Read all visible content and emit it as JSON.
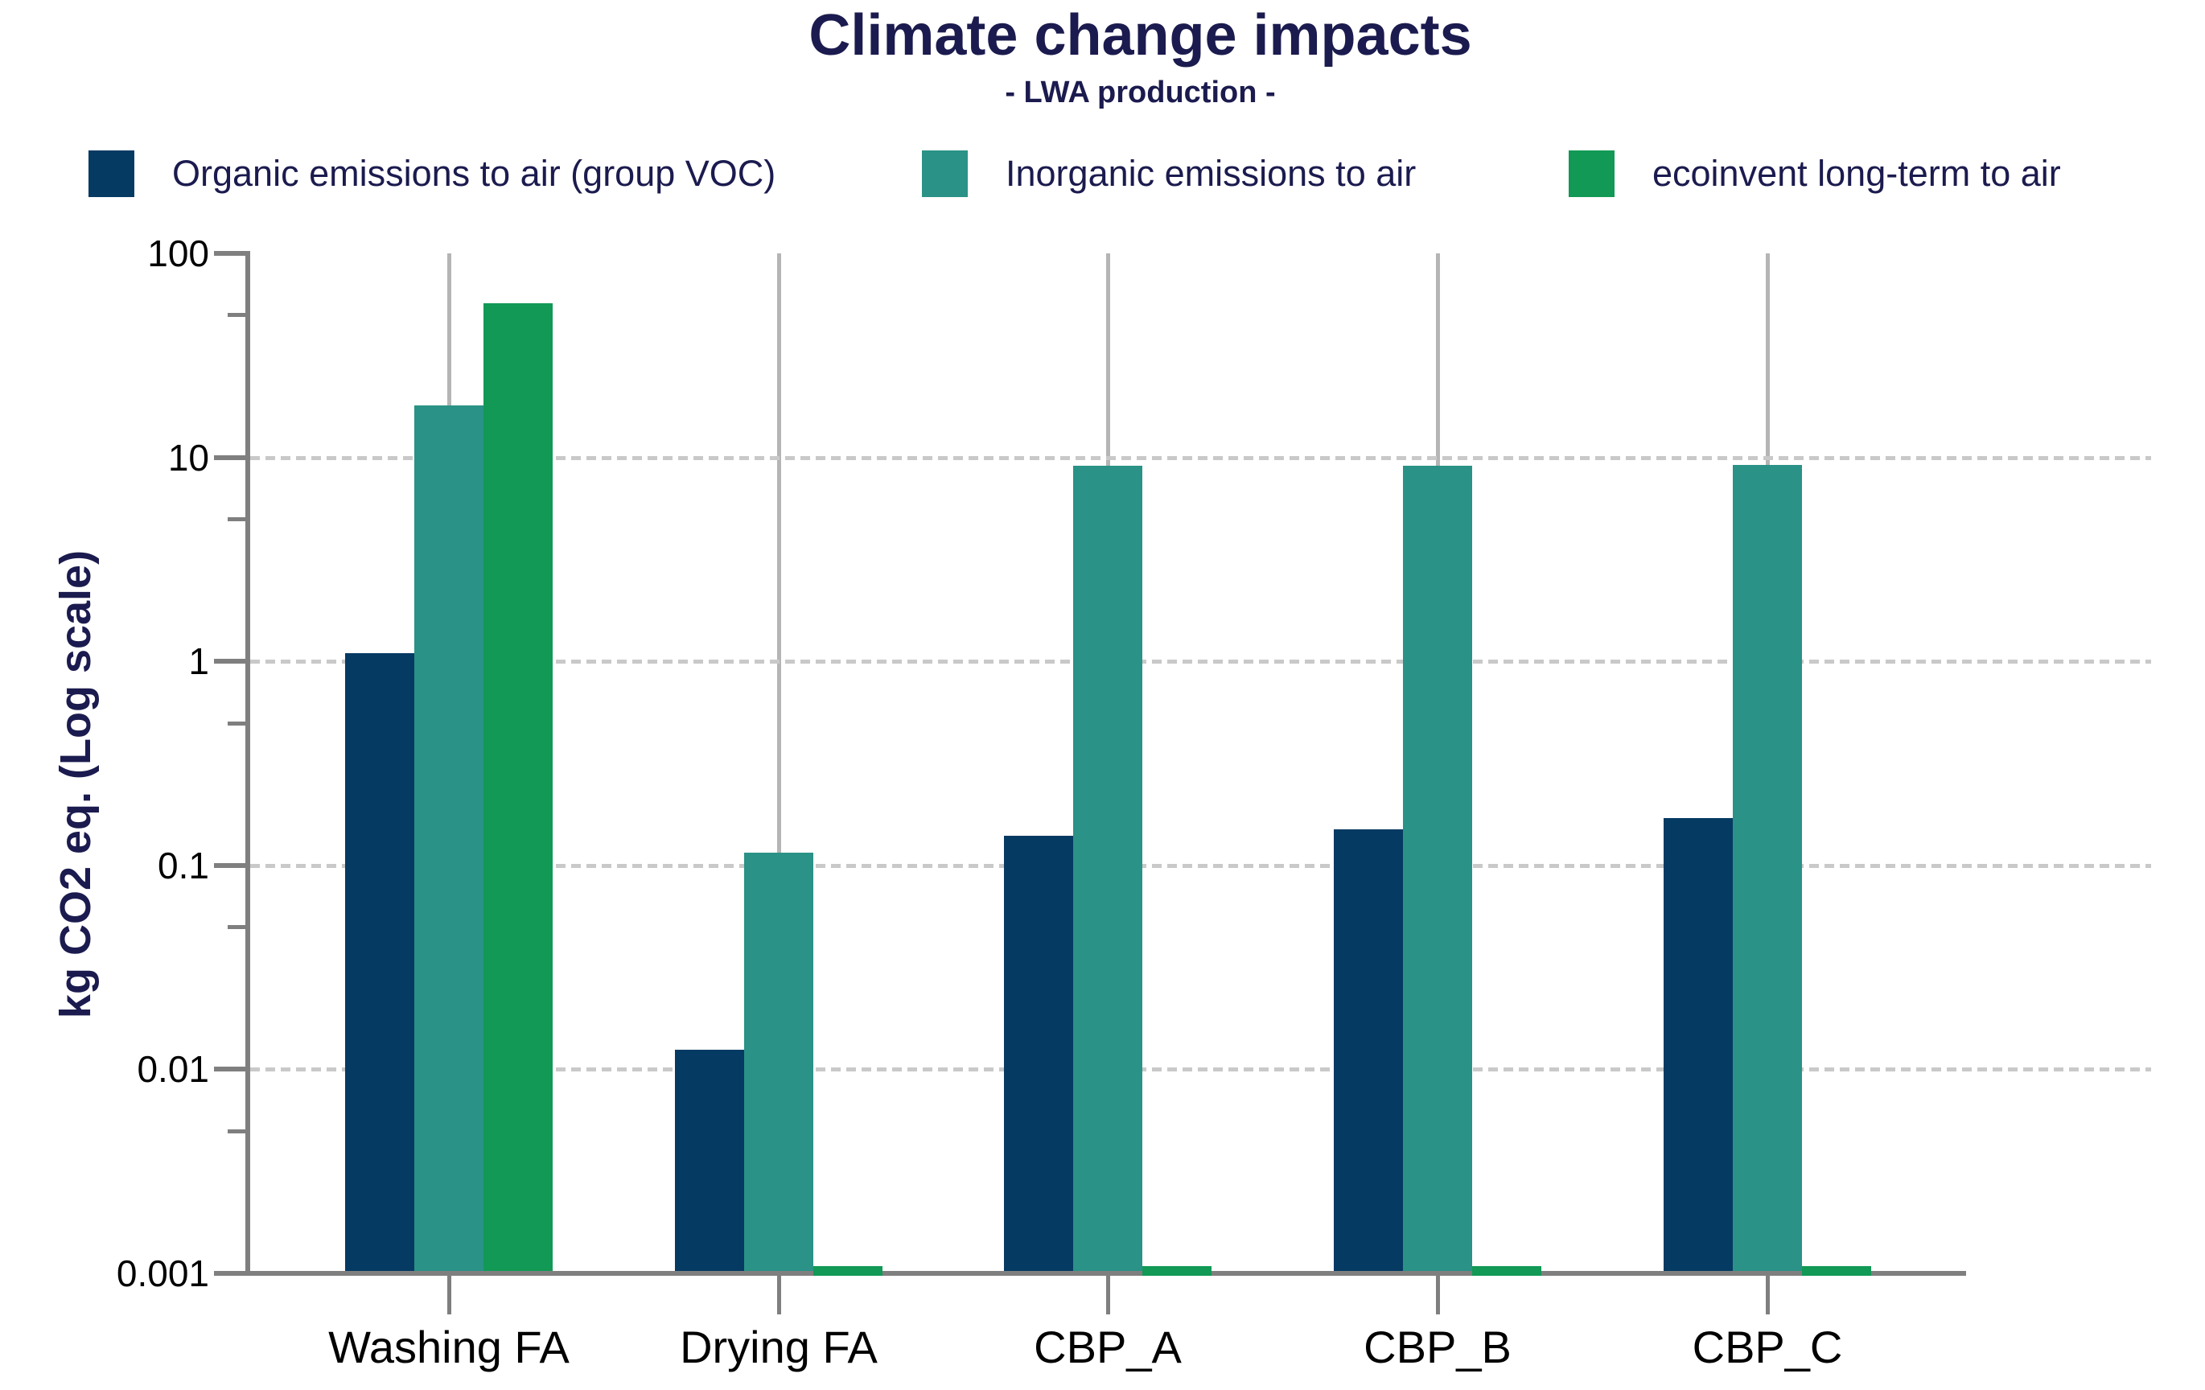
{
  "chart_data": {
    "type": "bar",
    "title": "Climate change impacts",
    "subtitle": "- LWA production -",
    "ylabel": "kg CO2 eq. (Log scale)",
    "yscale": "log",
    "ylim": [
      0.001,
      100
    ],
    "ytick_values": [
      100,
      10,
      1,
      0.1,
      0.01,
      0.001
    ],
    "ytick_labels": [
      "100",
      "10",
      "1",
      "0.1",
      "0.01",
      "0.001"
    ],
    "minor_ytick_values": [
      50,
      5,
      0.5,
      0.05,
      0.005
    ],
    "horizontal_gridlines_at": [
      10,
      1,
      0.1,
      0.01
    ],
    "gridline_style": "dashed horizontal, solid vertical at category centers",
    "legend_position": "top",
    "categories": [
      "Washing FA",
      "Drying FA",
      "CBP_A",
      "CBP_B",
      "CBP_C"
    ],
    "series": [
      {
        "name": "Organic emissions to air (group VOC)",
        "color": "#053A63",
        "values": [
          1.1,
          0.0125,
          0.14,
          0.15,
          0.17
        ]
      },
      {
        "name": "Inorganic emissions to air",
        "color": "#2A9286",
        "values": [
          18,
          0.115,
          9.1,
          9.1,
          9.2
        ]
      },
      {
        "name": "ecoinvent long-term to air",
        "color": "#119955",
        "values": [
          57,
          0.001,
          0.001,
          0.001,
          0.001
        ]
      }
    ]
  },
  "colors": {
    "text_navy": "#1B1B4F",
    "axis_gray": "#7F7F7F",
    "h_gridline_gray": "#C9C9C9",
    "v_gridline_gray": "#B5B5B5",
    "label_black": "#000000",
    "background": "#FFFFFF"
  }
}
